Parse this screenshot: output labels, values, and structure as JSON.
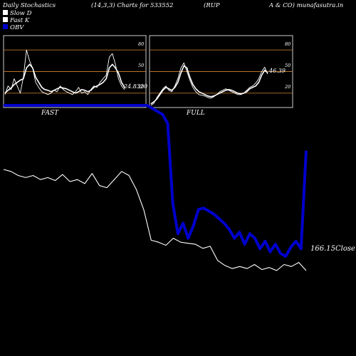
{
  "header": {
    "title": "Daily Stochastics",
    "params": "(14,3,3) Charts for 533552",
    "name": "(RUP",
    "exchange": "A & CO) munafasutra.in"
  },
  "legend": [
    {
      "label": "Slow  D",
      "color": "#ffffff"
    },
    {
      "label": "Fast K",
      "color": "#ffffff"
    },
    {
      "label": "OBV",
      "color": "#0000cc"
    }
  ],
  "colors": {
    "background": "#000000",
    "panel_border": "#ffffff",
    "level_line": "#b8742a",
    "stoch_line": "#ffffff",
    "obv": "#0000cc",
    "price": "#ffffff"
  },
  "chart_data": [
    {
      "type": "line",
      "panel": "fast",
      "label": "FAST",
      "value_label": "24.8320",
      "levels": [
        20,
        50,
        80
      ],
      "tick_labels": [
        "80",
        "50",
        "20"
      ],
      "ylim": [
        0,
        100
      ],
      "series": [
        {
          "name": "Slow D",
          "values": [
            20,
            24,
            27,
            32,
            35,
            38,
            40,
            55,
            60,
            55,
            42,
            35,
            28,
            25,
            24,
            22,
            24,
            26,
            28,
            27,
            26,
            24,
            22,
            20,
            22,
            25,
            24,
            22,
            24,
            28,
            30,
            32,
            35,
            40,
            55,
            60,
            55,
            48,
            35,
            28
          ]
        },
        {
          "name": "Fast K",
          "values": [
            18,
            30,
            25,
            40,
            30,
            20,
            42,
            80,
            65,
            55,
            35,
            28,
            22,
            20,
            18,
            20,
            24,
            22,
            30,
            25,
            22,
            20,
            18,
            22,
            28,
            20,
            22,
            18,
            25,
            30,
            28,
            35,
            40,
            45,
            70,
            75,
            60,
            40,
            30,
            24.83
          ]
        }
      ]
    },
    {
      "type": "line",
      "panel": "full",
      "label": "FULL",
      "value_label": "46.39",
      "levels": [
        20,
        50,
        80
      ],
      "tick_labels": [
        "80",
        "50",
        "20"
      ],
      "ylim": [
        0,
        100
      ],
      "series": [
        {
          "name": "Slow D",
          "values": [
            5,
            8,
            12,
            18,
            24,
            28,
            26,
            24,
            28,
            35,
            48,
            58,
            55,
            42,
            32,
            26,
            22,
            20,
            18,
            16,
            15,
            16,
            18,
            20,
            22,
            24,
            25,
            24,
            22,
            20,
            19,
            20,
            22,
            26,
            28,
            30,
            35,
            45,
            52,
            48
          ]
        },
        {
          "name": "Fast K",
          "values": [
            3,
            6,
            14,
            20,
            26,
            30,
            24,
            22,
            30,
            40,
            55,
            62,
            50,
            38,
            28,
            22,
            18,
            17,
            16,
            14,
            13,
            15,
            18,
            22,
            24,
            26,
            24,
            22,
            20,
            18,
            18,
            20,
            24,
            28,
            30,
            34,
            40,
            50,
            56,
            46.39
          ]
        }
      ]
    },
    {
      "type": "line",
      "panel": "main",
      "close_label": "166.15Close",
      "series": [
        {
          "name": "OBV",
          "values": [
            100,
            100,
            100,
            100,
            100,
            100,
            100,
            100,
            100,
            100,
            100,
            100,
            100,
            100,
            100,
            100,
            100,
            100,
            100,
            100,
            100,
            100,
            100,
            100,
            100,
            100,
            100,
            100,
            100,
            98,
            96,
            94,
            88,
            35,
            15,
            22,
            12,
            20,
            31,
            32,
            30,
            28,
            25,
            22,
            18,
            12,
            16,
            8,
            15,
            12,
            5,
            10,
            3,
            8,
            2,
            0,
            6,
            10,
            5,
            70
          ]
        },
        {
          "name": "Price",
          "values": [
            100,
            98,
            94,
            92,
            94,
            90,
            92,
            89,
            95,
            88,
            90,
            86,
            96,
            84,
            82,
            90,
            98,
            94,
            80,
            60,
            30,
            28,
            25,
            32,
            28,
            27,
            26,
            22,
            24,
            10,
            5,
            2,
            4,
            2,
            6,
            1,
            3,
            0,
            6,
            4,
            8,
            0
          ]
        }
      ]
    }
  ]
}
